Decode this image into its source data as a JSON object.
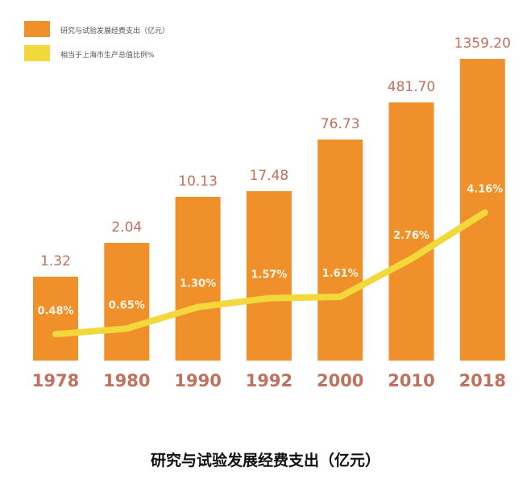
{
  "chart_data": {
    "type": "bar",
    "title": "研究与试验发展经费支出（亿元）",
    "categories": [
      "1978",
      "1980",
      "1990",
      "1992",
      "2000",
      "2010",
      "2018"
    ],
    "series": [
      {
        "name": "研究与试验发展经费支出（亿元）",
        "type": "bar",
        "color": "#f0902a",
        "values": [
          1.32,
          2.04,
          10.13,
          17.48,
          76.73,
          481.7,
          1359.2
        ],
        "labels": [
          "1.32",
          "2.04",
          "10.13",
          "17.48",
          "76.73",
          "481.70",
          "1359.20"
        ]
      },
      {
        "name": "相当于上海市生产总值比例%",
        "type": "line",
        "color": "#f2d83a",
        "values": [
          0.48,
          0.65,
          1.3,
          1.57,
          1.61,
          2.76,
          4.16
        ],
        "labels": [
          "0.48%",
          "0.65%",
          "1.30%",
          "1.57%",
          "1.61%",
          "2.76%",
          "4.16%"
        ]
      }
    ],
    "legend": "top-left",
    "grid": false,
    "xlabel": "",
    "ylabel": ""
  },
  "colors": {
    "value_label": "#c0705c",
    "year_label": "#c0705c"
  }
}
